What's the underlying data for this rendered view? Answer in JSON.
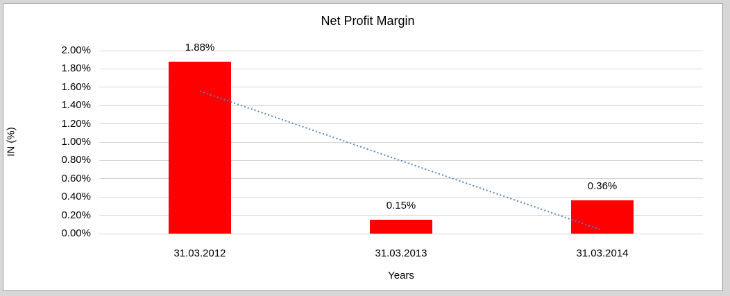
{
  "window": {
    "canvas_background": "#d7d7d7",
    "chart_background": "#ffffff",
    "chart_border_color": "#9b9b9b"
  },
  "chart_data": {
    "type": "bar",
    "title": "Net Profit Margin",
    "xlabel": "Years",
    "ylabel": "IN (%)",
    "categories": [
      "31.03.2012",
      "31.03.2013",
      "31.03.2014"
    ],
    "values": [
      1.88,
      0.15,
      0.36
    ],
    "data_labels": [
      "1.88%",
      "0.15%",
      "0.36%"
    ],
    "y_ticks": [
      "0.00%",
      "0.20%",
      "0.40%",
      "0.60%",
      "0.80%",
      "1.00%",
      "1.20%",
      "1.40%",
      "1.60%",
      "1.80%",
      "2.00%"
    ],
    "ylim": [
      0,
      2.0
    ],
    "y_step": 0.2,
    "grid": true,
    "legend_position": "none",
    "bar_color": "#ff0000",
    "gridline_color": "#d6d6d6",
    "text_color": "#000000",
    "trendline": {
      "type": "linear",
      "style": "dotted",
      "color": "#4a82c6",
      "start_value": 1.56,
      "end_value": 0.04
    }
  }
}
